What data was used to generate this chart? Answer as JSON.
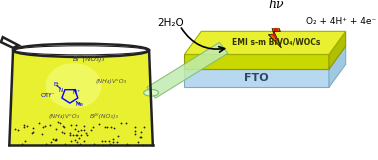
{
  "bg_color": "#ffffff",
  "beaker_liquid_yellow": "#e8f030",
  "beaker_liquid_highlight": "#f5ff80",
  "beaker_outline": "#222222",
  "dot_color": "#222222",
  "fto_top_color": "#c8e0f0",
  "fto_side_color": "#a8c8e0",
  "bivo4_top_color": "#e8f030",
  "bivo4_side_color": "#c8d020",
  "tube_color": "#b8e8b0",
  "tube_light": "#d8f8c8",
  "lightning_orange": "#e07000",
  "lightning_red": "#cc2200",
  "lightning_dark": "#111111",
  "text_bi_top": "Biᴵᴵᴵ(NO₃)₃",
  "text_nh4vo3_right": "(NH₄)VᵛO₃",
  "text_nh4vo3_bottom": "(NH₄)VᵛO₃",
  "text_bi_bottom": "Biᴵᴵᴵ(NO₃)₃",
  "text_fto": "FTO",
  "text_layer": "EMI s-m BiVO₄/WOCs",
  "text_2h2o": "2H₂O",
  "text_hv": "hν",
  "text_products": "O₂ + 4H⁺ + 4e⁻"
}
